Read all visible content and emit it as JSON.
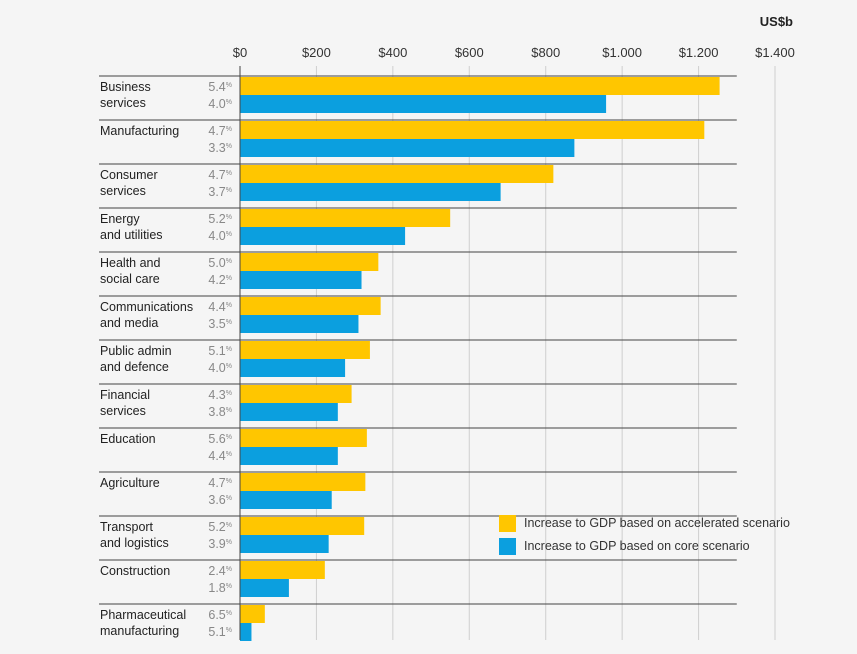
{
  "chart_data": {
    "type": "bar",
    "orientation": "horizontal",
    "unit_label": "US$b",
    "x_ticks": [
      "$0",
      "$200",
      "$400",
      "$600",
      "$800",
      "$1.000",
      "$1.200",
      "$1.400"
    ],
    "x_tick_values": [
      0,
      200,
      400,
      600,
      800,
      1000,
      1200,
      1400
    ],
    "xlim": [
      0,
      1400
    ],
    "grid": true,
    "categories": [
      [
        "Business",
        "services"
      ],
      [
        "Manufacturing"
      ],
      [
        "Consumer",
        "services"
      ],
      [
        "Energy",
        "and utilities"
      ],
      [
        "Health and",
        "social care"
      ],
      [
        "Communications",
        "and media"
      ],
      [
        "Public admin",
        "and defence"
      ],
      [
        "Financial",
        "services"
      ],
      [
        "Education"
      ],
      [
        "Agriculture"
      ],
      [
        "Transport",
        "and logistics"
      ],
      [
        "Construction"
      ],
      [
        "Pharmaceutical",
        "manufacturing"
      ]
    ],
    "series": [
      {
        "name": "Increase to GDP based on accelerated scenario",
        "color": "#ffc600",
        "values": [
          1255,
          1215,
          820,
          550,
          362,
          368,
          340,
          292,
          332,
          328,
          325,
          222,
          65
        ],
        "growth_labels": [
          "5.4",
          "4.7",
          "4.7",
          "5.2",
          "5.0",
          "4.4",
          "5.1",
          "4.3",
          "5.6",
          "4.7",
          "5.2",
          "2.4",
          "6.5"
        ]
      },
      {
        "name": "Increase to GDP based on core scenario",
        "color": "#0b9fdf",
        "values": [
          958,
          875,
          682,
          432,
          318,
          310,
          275,
          256,
          256,
          240,
          232,
          128,
          30
        ],
        "growth_labels": [
          "4.0",
          "3.3",
          "3.7",
          "4.0",
          "4.2",
          "3.5",
          "4.0",
          "3.8",
          "4.4",
          "3.6",
          "3.9",
          "1.8",
          "5.1"
        ]
      }
    ],
    "percent_sign": "%",
    "legend_position": "bottom-right"
  }
}
